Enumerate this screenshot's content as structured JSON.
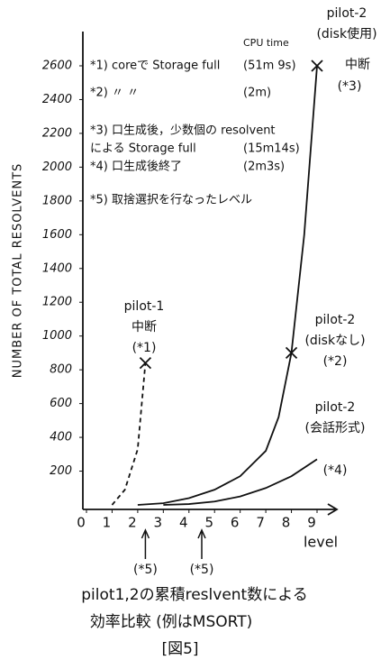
{
  "chart_data": {
    "type": "line",
    "y_label": "NUMBER OF TOTAL RESOLVENTS",
    "x_label": "level",
    "xlim": [
      0,
      9
    ],
    "ylim": [
      0,
      2600
    ],
    "xticks": [
      0,
      1,
      2,
      3,
      4,
      5,
      6,
      7,
      8,
      9
    ],
    "yticks": [
      200,
      400,
      600,
      800,
      1000,
      1200,
      1400,
      1600,
      1800,
      2000,
      2200,
      2400,
      2600
    ],
    "series": [
      {
        "name": "pilot-1",
        "lines": [
          "中断",
          "(*1)"
        ],
        "dashed": true,
        "marker": "x",
        "color": "#111111",
        "x": [
          1,
          1.5,
          2,
          2.3
        ],
        "values": [
          0,
          90,
          330,
          840
        ]
      },
      {
        "name": "pilot-2",
        "lines": [
          "(diskなし)",
          "(*2)"
        ],
        "dashed": false,
        "marker": "x",
        "color": "#111111",
        "x": [
          2,
          3,
          4,
          5,
          6,
          7,
          7.5,
          8
        ],
        "values": [
          0,
          10,
          40,
          90,
          170,
          320,
          520,
          900
        ]
      },
      {
        "name": "pilot-2",
        "lines": [
          "(disk使用)",
          "中断",
          "(*3)"
        ],
        "dashed": false,
        "marker": "x",
        "color": "#111111",
        "x": [
          8,
          8.5,
          9
        ],
        "values": [
          900,
          1600,
          2600
        ]
      },
      {
        "name": "pilot-2",
        "lines": [
          "(会話形式)",
          "(*4)"
        ],
        "dashed": false,
        "marker": "none",
        "color": "#111111",
        "x": [
          3,
          4,
          5,
          6,
          7,
          8,
          9
        ],
        "values": [
          0,
          5,
          20,
          50,
          100,
          170,
          270
        ]
      }
    ],
    "selected_levels": [
      {
        "x": 2.3,
        "label": "(*5)"
      },
      {
        "x": 4.5,
        "label": "(*5)"
      }
    ],
    "cpu_time_label": "CPU time",
    "notes": [
      {
        "lines": [
          "*1) coreで Storage full"
        ],
        "time": "(51m 9s)"
      },
      {
        "lines": [
          "*2)     〃        〃"
        ],
        "time": "(2m)"
      },
      {
        "lines": [
          "*3) 口生成後，少数個の resolvent",
          "による Storage full"
        ],
        "time": "(15m14s)"
      },
      {
        "lines": [
          "*4) 口生成後終了"
        ],
        "time": "(2m3s)"
      },
      {
        "lines": [
          "*5) 取捨選択を行なったレベル"
        ],
        "time": null
      }
    ],
    "caption": [
      "pilot1,2の累積reslvent数による",
      "効率比較 (例はMSORT)"
    ],
    "figure_label": "[図5]"
  }
}
